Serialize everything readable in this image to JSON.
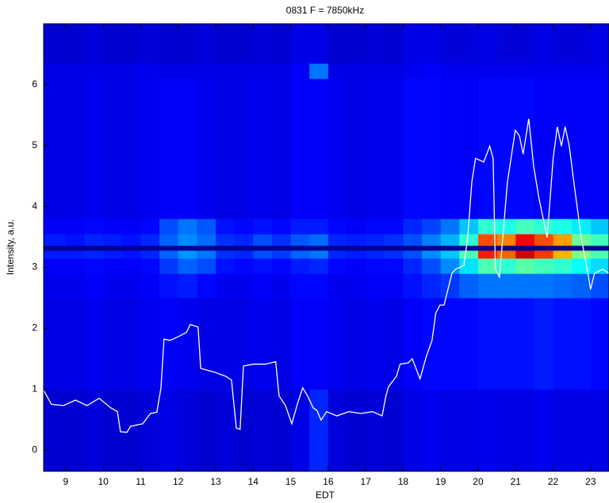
{
  "chart_data": {
    "type": "heatmap",
    "title": "0831  F = 7850kHz",
    "x_label": "EDT",
    "y_label": "Intensity, a.u.",
    "xlim": [
      8.41,
      23.49
    ],
    "ylim": [
      -0.35,
      7.0
    ],
    "xticks": [
      9,
      10,
      11,
      12,
      13,
      14,
      15,
      16,
      17,
      18,
      19,
      20,
      21,
      22,
      23
    ],
    "yticks": [
      0,
      1,
      2,
      3,
      4,
      5,
      6
    ],
    "colormap": "jet",
    "clim": [
      0,
      1
    ],
    "x_bins": [
      8.41,
      9,
      9.5,
      10,
      10.5,
      11,
      11.5,
      12,
      12.5,
      13,
      13.5,
      14,
      14.5,
      15,
      15.5,
      16,
      16.5,
      17,
      17.5,
      18,
      18.5,
      19,
      19.5,
      20,
      20.5,
      21,
      21.5,
      22,
      22.5,
      23,
      23.49
    ],
    "y_bins": [
      -0.35,
      1,
      2.5,
      2.9,
      3.15,
      3.28,
      3.36,
      3.55,
      3.8,
      6.1,
      6.35,
      7.0
    ],
    "z": [
      [
        0.08,
        0.08,
        0.09,
        0.08,
        0.08,
        0.09,
        0.1,
        0.09,
        0.08,
        0.09,
        0.08,
        0.09,
        0.08,
        0.1,
        0.16,
        0.09,
        0.08,
        0.09,
        0.08,
        0.1,
        0.11,
        0.1,
        0.1,
        0.11,
        0.1,
        0.1,
        0.11,
        0.1,
        0.1,
        0.1
      ],
      [
        0.1,
        0.1,
        0.11,
        0.1,
        0.1,
        0.11,
        0.12,
        0.11,
        0.1,
        0.1,
        0.1,
        0.11,
        0.1,
        0.12,
        0.12,
        0.11,
        0.1,
        0.11,
        0.1,
        0.12,
        0.13,
        0.13,
        0.13,
        0.14,
        0.14,
        0.14,
        0.15,
        0.14,
        0.14,
        0.13
      ],
      [
        0.11,
        0.11,
        0.12,
        0.11,
        0.11,
        0.12,
        0.14,
        0.15,
        0.13,
        0.11,
        0.11,
        0.12,
        0.11,
        0.13,
        0.13,
        0.11,
        0.11,
        0.12,
        0.12,
        0.14,
        0.16,
        0.18,
        0.22,
        0.24,
        0.24,
        0.24,
        0.24,
        0.23,
        0.22,
        0.2
      ],
      [
        0.12,
        0.12,
        0.13,
        0.12,
        0.12,
        0.13,
        0.18,
        0.22,
        0.2,
        0.14,
        0.13,
        0.14,
        0.13,
        0.15,
        0.16,
        0.13,
        0.12,
        0.13,
        0.13,
        0.16,
        0.2,
        0.26,
        0.35,
        0.45,
        0.42,
        0.46,
        0.44,
        0.42,
        0.38,
        0.34
      ],
      [
        0.15,
        0.15,
        0.16,
        0.15,
        0.14,
        0.16,
        0.22,
        0.27,
        0.24,
        0.17,
        0.16,
        0.2,
        0.18,
        0.22,
        0.24,
        0.16,
        0.15,
        0.16,
        0.17,
        0.2,
        0.26,
        0.32,
        0.45,
        0.85,
        0.78,
        0.92,
        0.82,
        0.7,
        0.5,
        0.45
      ],
      [
        0.02,
        0.02,
        0.02,
        0.02,
        0.02,
        0.02,
        0.02,
        0.02,
        0.02,
        0.02,
        0.02,
        0.02,
        0.02,
        0.02,
        0.02,
        0.02,
        0.02,
        0.02,
        0.02,
        0.02,
        0.02,
        0.02,
        0.02,
        0.02,
        0.02,
        0.02,
        0.02,
        0.02,
        0.02,
        0.02
      ],
      [
        0.15,
        0.14,
        0.16,
        0.15,
        0.14,
        0.16,
        0.22,
        0.26,
        0.23,
        0.17,
        0.16,
        0.2,
        0.17,
        0.21,
        0.23,
        0.16,
        0.15,
        0.16,
        0.17,
        0.2,
        0.25,
        0.3,
        0.42,
        0.8,
        0.75,
        0.88,
        0.8,
        0.72,
        0.48,
        0.44
      ],
      [
        0.12,
        0.12,
        0.13,
        0.12,
        0.12,
        0.13,
        0.2,
        0.24,
        0.21,
        0.14,
        0.13,
        0.14,
        0.13,
        0.15,
        0.15,
        0.13,
        0.12,
        0.13,
        0.13,
        0.16,
        0.19,
        0.24,
        0.32,
        0.42,
        0.4,
        0.44,
        0.42,
        0.4,
        0.36,
        0.32
      ],
      [
        0.1,
        0.1,
        0.11,
        0.1,
        0.1,
        0.11,
        0.12,
        0.12,
        0.11,
        0.1,
        0.1,
        0.11,
        0.1,
        0.12,
        0.12,
        0.11,
        0.1,
        0.11,
        0.11,
        0.13,
        0.13,
        0.12,
        0.12,
        0.13,
        0.13,
        0.13,
        0.12,
        0.12,
        0.12,
        0.12
      ],
      [
        0.1,
        0.1,
        0.1,
        0.1,
        0.1,
        0.11,
        0.1,
        0.1,
        0.1,
        0.1,
        0.1,
        0.1,
        0.1,
        0.12,
        0.24,
        0.1,
        0.1,
        0.1,
        0.1,
        0.11,
        0.12,
        0.11,
        0.11,
        0.11,
        0.11,
        0.11,
        0.11,
        0.11,
        0.11,
        0.11
      ],
      [
        0.08,
        0.08,
        0.09,
        0.08,
        0.08,
        0.09,
        0.08,
        0.08,
        0.09,
        0.08,
        0.08,
        0.09,
        0.08,
        0.1,
        0.1,
        0.08,
        0.08,
        0.09,
        0.08,
        0.1,
        0.1,
        0.09,
        0.09,
        0.1,
        0.09,
        0.09,
        0.1,
        0.09,
        0.09,
        0.1
      ]
    ],
    "series": [
      {
        "color": "#ffffff",
        "x": [
          8.41,
          8.62,
          8.94,
          9.26,
          9.57,
          9.89,
          10.21,
          10.38,
          10.46,
          10.63,
          10.73,
          11.05,
          11.26,
          11.43,
          11.54,
          11.62,
          11.79,
          12.0,
          12.22,
          12.32,
          12.53,
          12.6,
          12.96,
          13.27,
          13.42,
          13.55,
          13.65,
          13.74,
          14.01,
          14.33,
          14.6,
          14.69,
          14.86,
          15.03,
          15.18,
          15.32,
          15.45,
          15.6,
          15.7,
          15.81,
          15.96,
          16.23,
          16.55,
          16.87,
          17.18,
          17.44,
          17.54,
          17.61,
          17.82,
          17.92,
          18.14,
          18.24,
          18.45,
          18.62,
          18.77,
          18.87,
          18.98,
          19.09,
          19.3,
          19.4,
          19.62,
          19.72,
          19.83,
          19.93,
          20.15,
          20.31,
          20.4,
          20.46,
          20.57,
          20.78,
          20.99,
          21.1,
          21.2,
          21.35,
          21.48,
          21.62,
          21.84,
          22.0,
          22.11,
          22.22,
          22.32,
          22.43,
          22.58,
          22.75,
          22.89,
          23.0,
          23.1,
          23.32,
          23.49
        ],
        "values": [
          0.98,
          0.75,
          0.73,
          0.82,
          0.73,
          0.85,
          0.69,
          0.63,
          0.3,
          0.29,
          0.39,
          0.43,
          0.6,
          0.62,
          1.02,
          1.82,
          1.8,
          1.86,
          1.93,
          2.06,
          2.02,
          1.34,
          1.28,
          1.21,
          1.15,
          0.36,
          0.34,
          1.38,
          1.41,
          1.41,
          1.45,
          0.89,
          0.73,
          0.43,
          0.76,
          1.02,
          0.89,
          0.69,
          0.65,
          0.49,
          0.63,
          0.56,
          0.63,
          0.6,
          0.63,
          0.56,
          0.89,
          1.04,
          1.21,
          1.41,
          1.43,
          1.5,
          1.17,
          1.54,
          1.8,
          2.25,
          2.38,
          2.38,
          2.9,
          2.97,
          3.03,
          3.49,
          4.4,
          4.79,
          4.73,
          4.99,
          4.79,
          2.97,
          2.84,
          4.4,
          5.25,
          5.16,
          4.86,
          5.44,
          4.66,
          4.14,
          3.49,
          4.79,
          5.31,
          4.99,
          5.31,
          4.99,
          4.27,
          3.49,
          3.03,
          2.64,
          2.9,
          2.97,
          2.9
        ]
      }
    ]
  }
}
